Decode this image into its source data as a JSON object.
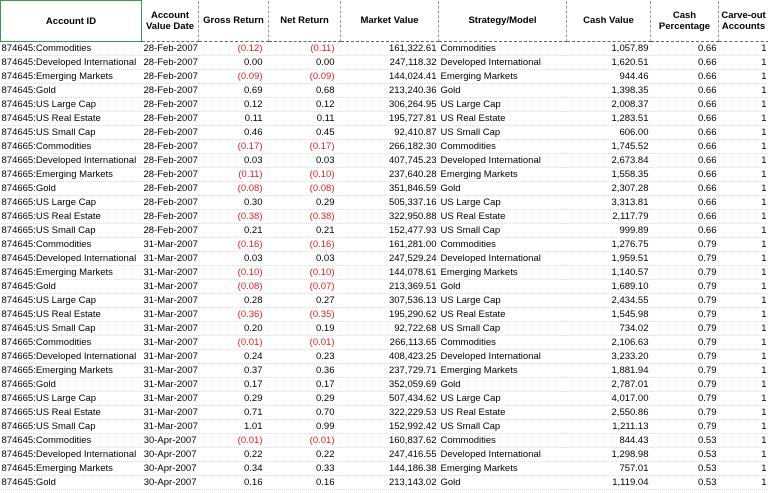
{
  "table": {
    "columns": [
      "Account ID",
      "Account Value Date",
      "Gross Return",
      "Net Return",
      "Market Value",
      "Strategy/Model",
      "Cash Value",
      "Cash Percentage",
      "Carve-out Accounts"
    ],
    "rows": [
      [
        "874645:Commodities",
        "28-Feb-2007",
        "(0.12)",
        "(0.11)",
        "161,322.61",
        "Commodities",
        "1,057.89",
        "0.66",
        "1"
      ],
      [
        "874645:Developed International",
        "28-Feb-2007",
        "0.00",
        "0.00",
        "247,118.32",
        "Developed International",
        "1,620.51",
        "0.66",
        "1"
      ],
      [
        "874645:Emerging Markets",
        "28-Feb-2007",
        "(0.09)",
        "(0.09)",
        "144,024.41",
        "Emerging Markets",
        "944.46",
        "0.66",
        "1"
      ],
      [
        "874645:Gold",
        "28-Feb-2007",
        "0.69",
        "0.68",
        "213,240.36",
        "Gold",
        "1,398.35",
        "0.66",
        "1"
      ],
      [
        "874645:US Large Cap",
        "28-Feb-2007",
        "0.12",
        "0.12",
        "306,264.95",
        "US Large Cap",
        "2,008.37",
        "0.66",
        "1"
      ],
      [
        "874645:US Real Estate",
        "28-Feb-2007",
        "0.11",
        "0.11",
        "195,727.81",
        "US Real Estate",
        "1,283.51",
        "0.66",
        "1"
      ],
      [
        "874645:US Small Cap",
        "28-Feb-2007",
        "0.46",
        "0.45",
        "92,410.87",
        "US Small Cap",
        "606.00",
        "0.66",
        "1"
      ],
      [
        "874665:Commodities",
        "28-Feb-2007",
        "(0.17)",
        "(0.17)",
        "266,182.30",
        "Commodities",
        "1,745.52",
        "0.66",
        "1"
      ],
      [
        "874665:Developed International",
        "28-Feb-2007",
        "0.03",
        "0.03",
        "407,745.23",
        "Developed International",
        "2,673.84",
        "0.66",
        "1"
      ],
      [
        "874665:Emerging Markets",
        "28-Feb-2007",
        "(0.11)",
        "(0.10)",
        "237,640.28",
        "Emerging Markets",
        "1,558.35",
        "0.66",
        "1"
      ],
      [
        "874665:Gold",
        "28-Feb-2007",
        "(0.08)",
        "(0.08)",
        "351,846.59",
        "Gold",
        "2,307.28",
        "0.66",
        "1"
      ],
      [
        "874665:US Large Cap",
        "28-Feb-2007",
        "0.30",
        "0.29",
        "505,337.16",
        "US Large Cap",
        "3,313.81",
        "0.66",
        "1"
      ],
      [
        "874665:US Real Estate",
        "28-Feb-2007",
        "(0.38)",
        "(0.38)",
        "322,950.88",
        "US Real Estate",
        "2,117.79",
        "0.66",
        "1"
      ],
      [
        "874665:US Small Cap",
        "28-Feb-2007",
        "0.21",
        "0.21",
        "152,477.93",
        "US Small Cap",
        "999.89",
        "0.66",
        "1"
      ],
      [
        "874645:Commodities",
        "31-Mar-2007",
        "(0.16)",
        "(0.16)",
        "161,281.00",
        "Commodities",
        "1,276.75",
        "0.79",
        "1"
      ],
      [
        "874645:Developed International",
        "31-Mar-2007",
        "0.03",
        "0.03",
        "247,529.24",
        "Developed International",
        "1,959.51",
        "0.79",
        "1"
      ],
      [
        "874645:Emerging Markets",
        "31-Mar-2007",
        "(0.10)",
        "(0.10)",
        "144,078.61",
        "Emerging Markets",
        "1,140.57",
        "0.79",
        "1"
      ],
      [
        "874645:Gold",
        "31-Mar-2007",
        "(0.08)",
        "(0.07)",
        "213,369.51",
        "Gold",
        "1,689.10",
        "0.79",
        "1"
      ],
      [
        "874645:US Large Cap",
        "31-Mar-2007",
        "0.28",
        "0.27",
        "307,536.13",
        "US Large Cap",
        "2,434.55",
        "0.79",
        "1"
      ],
      [
        "874645:US Real Estate",
        "31-Mar-2007",
        "(0.36)",
        "(0.35)",
        "195,290.62",
        "US Real Estate",
        "1,545.98",
        "0.79",
        "1"
      ],
      [
        "874645:US Small Cap",
        "31-Mar-2007",
        "0.20",
        "0.19",
        "92,722.68",
        "US Small Cap",
        "734.02",
        "0.79",
        "1"
      ],
      [
        "874665:Commodities",
        "31-Mar-2007",
        "(0.01)",
        "(0.01)",
        "266,113.65",
        "Commodities",
        "2,106.63",
        "0.79",
        "1"
      ],
      [
        "874665:Developed International",
        "31-Mar-2007",
        "0.24",
        "0.23",
        "408,423.25",
        "Developed International",
        "3,233.20",
        "0.79",
        "1"
      ],
      [
        "874665:Emerging Markets",
        "31-Mar-2007",
        "0.37",
        "0.36",
        "237,729.71",
        "Emerging Markets",
        "1,881.94",
        "0.79",
        "1"
      ],
      [
        "874665:Gold",
        "31-Mar-2007",
        "0.17",
        "0.17",
        "352,059.69",
        "Gold",
        "2,787.01",
        "0.79",
        "1"
      ],
      [
        "874665:US Large Cap",
        "31-Mar-2007",
        "0.29",
        "0.29",
        "507,434.62",
        "US Large Cap",
        "4,017.00",
        "0.79",
        "1"
      ],
      [
        "874665:US Real Estate",
        "31-Mar-2007",
        "0.71",
        "0.70",
        "322,229.53",
        "US Real Estate",
        "2,550.86",
        "0.79",
        "1"
      ],
      [
        "874665:US Small Cap",
        "31-Mar-2007",
        "1.01",
        "0.99",
        "152,992.42",
        "US Small Cap",
        "1,211.13",
        "0.79",
        "1"
      ],
      [
        "874645:Commodities",
        "30-Apr-2007",
        "(0.01)",
        "(0.01)",
        "160,837.62",
        "Commodities",
        "844.43",
        "0.53",
        "1"
      ],
      [
        "874645:Developed International",
        "30-Apr-2007",
        "0.22",
        "0.22",
        "247,416.55",
        "Developed International",
        "1,298.98",
        "0.53",
        "1"
      ],
      [
        "874645:Emerging Markets",
        "30-Apr-2007",
        "0.34",
        "0.33",
        "144,186.38",
        "Emerging Markets",
        "757.01",
        "0.53",
        "1"
      ],
      [
        "874645:Gold",
        "30-Apr-2007",
        "0.16",
        "0.16",
        "213,143.02",
        "Gold",
        "1,119.04",
        "0.53",
        "1"
      ]
    ]
  }
}
